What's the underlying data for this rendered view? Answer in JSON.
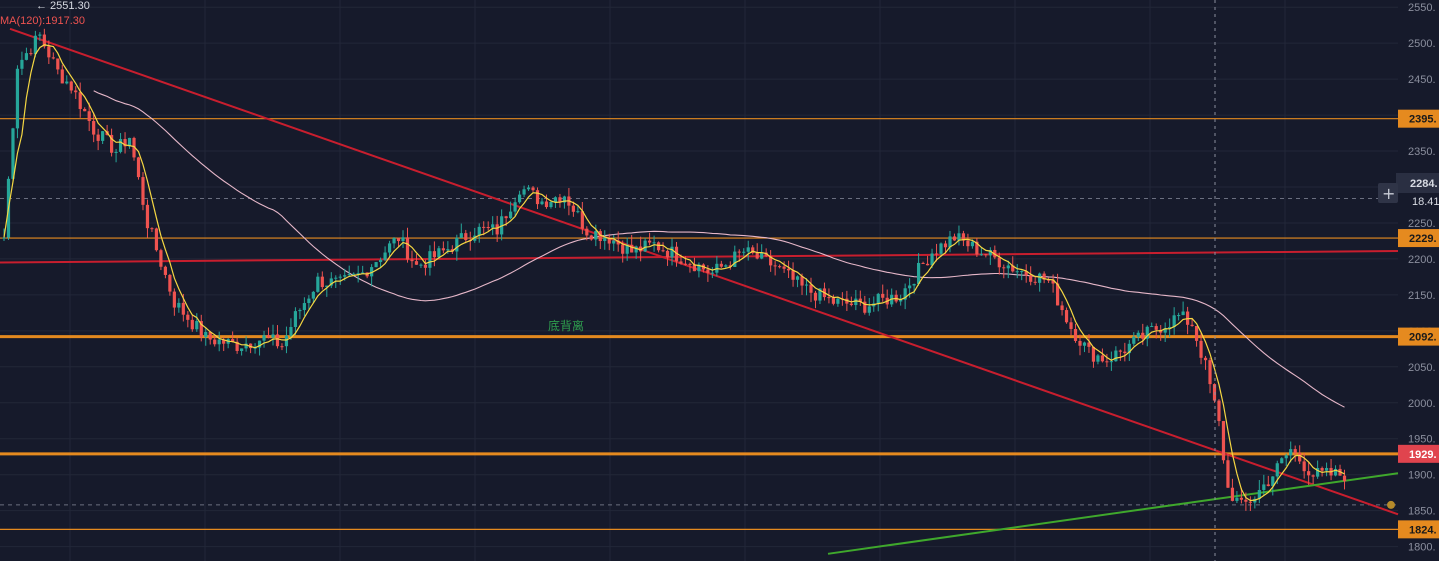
{
  "legend": {
    "top_line": "← 2551.30",
    "ma_line": "MA(120):1917.30"
  },
  "crosshair": {
    "price_label": "2284.",
    "sub_label": "18.41",
    "plus_symbol": "+"
  },
  "annotation": {
    "text": "底背离",
    "color": "#2e9e4e"
  },
  "colors": {
    "background": "#161a2b",
    "grid": "#222738",
    "up": "#26a69a",
    "down": "#ef5350",
    "ma_short": "#f5d742",
    "ma_long": "#e6b7c9",
    "resistance_trend": "#c81e2e",
    "support_trend": "#3fa82c",
    "level": "#e58a1f",
    "current_price": "#e0444e"
  },
  "chart_data": {
    "type": "candlestick",
    "ylim": [
      1780,
      2560
    ],
    "y_ticks": [
      1800,
      1850,
      1900,
      1950,
      2000,
      2050,
      2100,
      2150,
      2200,
      2250,
      2300,
      2350,
      2400,
      2450,
      2500,
      2550
    ],
    "y_tick_labels": [
      "1800.",
      "1850.",
      "1900.",
      "1950.",
      "2000.",
      "2050.",
      "2100.",
      "2150.",
      "2200.",
      "2250.",
      "2300.",
      "2350.",
      "2400.",
      "2450.",
      "2500.",
      "2550."
    ],
    "bar_count": 300,
    "anchors": [
      [
        0,
        2230
      ],
      [
        3,
        2470
      ],
      [
        8,
        2510
      ],
      [
        12,
        2460
      ],
      [
        15,
        2440
      ],
      [
        20,
        2380
      ],
      [
        25,
        2350
      ],
      [
        28,
        2370
      ],
      [
        32,
        2250
      ],
      [
        38,
        2140
      ],
      [
        45,
        2090
      ],
      [
        52,
        2080
      ],
      [
        58,
        2090
      ],
      [
        62,
        2080
      ],
      [
        65,
        2120
      ],
      [
        70,
        2170
      ],
      [
        75,
        2165
      ],
      [
        80,
        2180
      ],
      [
        88,
        2230
      ],
      [
        92,
        2190
      ],
      [
        98,
        2210
      ],
      [
        105,
        2240
      ],
      [
        110,
        2240
      ],
      [
        115,
        2300
      ],
      [
        120,
        2280
      ],
      [
        125,
        2290
      ],
      [
        130,
        2240
      ],
      [
        135,
        2230
      ],
      [
        140,
        2210
      ],
      [
        145,
        2220
      ],
      [
        152,
        2200
      ],
      [
        158,
        2180
      ],
      [
        165,
        2210
      ],
      [
        172,
        2190
      ],
      [
        178,
        2160
      ],
      [
        185,
        2140
      ],
      [
        192,
        2135
      ],
      [
        200,
        2150
      ],
      [
        207,
        2210
      ],
      [
        212,
        2230
      ],
      [
        218,
        2210
      ],
      [
        226,
        2185
      ],
      [
        233,
        2170
      ],
      [
        238,
        2105
      ],
      [
        242,
        2070
      ],
      [
        246,
        2060
      ],
      [
        250,
        2075
      ],
      [
        256,
        2100
      ],
      [
        262,
        2120
      ],
      [
        265,
        2110
      ],
      [
        268,
        2050
      ],
      [
        271,
        1970
      ],
      [
        273,
        1880
      ],
      [
        276,
        1855
      ],
      [
        279,
        1870
      ],
      [
        283,
        1900
      ],
      [
        287,
        1935
      ],
      [
        292,
        1900
      ]
    ],
    "levels": [
      {
        "value": 2395,
        "label": "2395.",
        "thick": false
      },
      {
        "value": 2229,
        "label": "2229.",
        "thick": false
      },
      {
        "value": 2092,
        "label": "2092.",
        "thick": true
      },
      {
        "value": 1929,
        "label": "1929.",
        "thick": true
      },
      {
        "value": 1824,
        "label": "1824.",
        "thick": false
      }
    ],
    "dashed_levels": [
      2284,
      1858
    ],
    "current_price": 1929
  }
}
